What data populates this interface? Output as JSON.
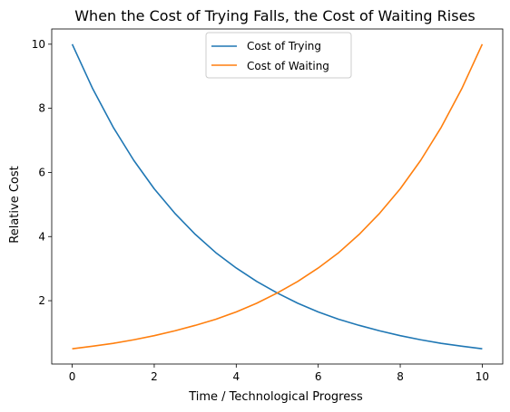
{
  "chart_data": {
    "type": "line",
    "title": "When the Cost of Trying Falls, the Cost of Waiting Rises",
    "xlabel": "Time / Technological Progress",
    "ylabel": "Relative Cost",
    "xlim": [
      -0.5,
      10.5
    ],
    "ylim": [
      0.025,
      10.475
    ],
    "x_ticks": [
      0,
      2,
      4,
      6,
      8,
      10
    ],
    "y_ticks": [
      2,
      4,
      6,
      8,
      10
    ],
    "grid": false,
    "legend_position": "top-center",
    "x": [
      0,
      0.5,
      1,
      1.5,
      2,
      2.5,
      3,
      3.5,
      4,
      4.5,
      5,
      5.5,
      6,
      6.5,
      7,
      7.5,
      8,
      8.5,
      9,
      9.5,
      10
    ],
    "series": [
      {
        "name": "Cost of Trying",
        "color": "#1f77b4",
        "values": [
          10.0,
          8.61,
          7.41,
          6.38,
          5.49,
          4.73,
          4.07,
          3.5,
          3.02,
          2.6,
          2.24,
          1.92,
          1.65,
          1.42,
          1.23,
          1.06,
          0.91,
          0.78,
          0.67,
          0.58,
          0.5
        ]
      },
      {
        "name": "Cost of Waiting",
        "color": "#ff7f0e",
        "values": [
          0.5,
          0.58,
          0.67,
          0.78,
          0.91,
          1.06,
          1.23,
          1.42,
          1.65,
          1.92,
          2.24,
          2.6,
          3.02,
          3.5,
          4.07,
          4.73,
          5.49,
          6.38,
          7.41,
          8.61,
          10.0
        ]
      }
    ]
  }
}
